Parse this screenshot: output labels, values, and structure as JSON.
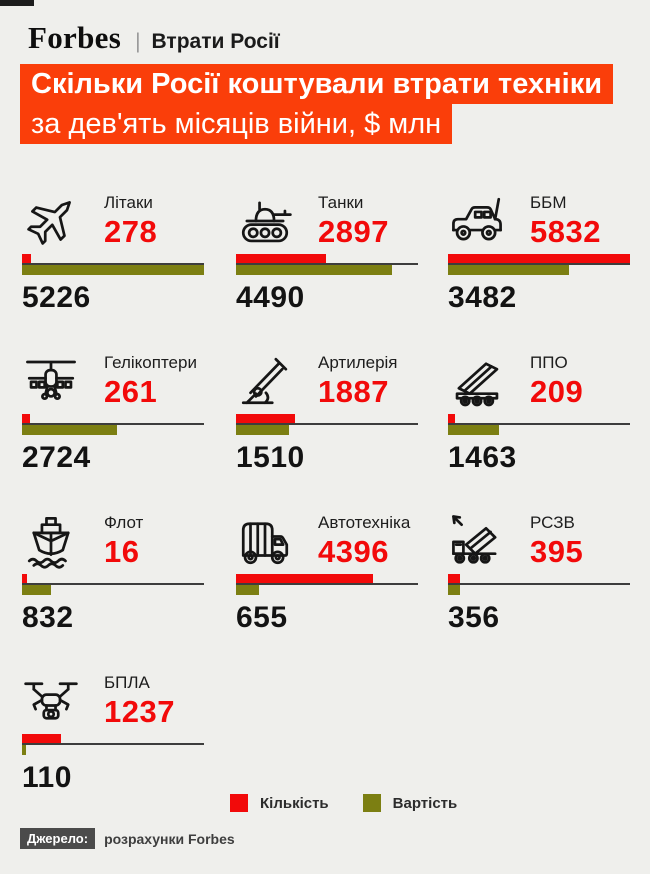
{
  "meta": {
    "background": "#EFEFEC",
    "accent": "#FA3E0A",
    "quantity_color": "#F20A0A",
    "cost_color": "#7C7F12"
  },
  "header": {
    "brand": "Forbes",
    "separator": "|",
    "section": "Втрати Росії"
  },
  "banner": {
    "title": "Скільки Росії коштували втрати техніки",
    "subtitle": "за дев'ять місяців війни, $ млн"
  },
  "chart_data": {
    "type": "bar",
    "orientation": "horizontal",
    "unit": "$ млн",
    "series": [
      {
        "name": "Кількість",
        "color": "#F20A0A",
        "scale_max": 5832
      },
      {
        "name": "Вартість",
        "color": "#7C7F12",
        "scale_max": 5226
      }
    ],
    "items": [
      {
        "label": "Літаки",
        "icon": "fighter-jet-icon",
        "quantity": 278,
        "cost": 5226
      },
      {
        "label": "Танки",
        "icon": "tank-icon",
        "quantity": 2897,
        "cost": 4490
      },
      {
        "label": "ББМ",
        "icon": "armored-vehicle-icon",
        "quantity": 5832,
        "cost": 3482
      },
      {
        "label": "Гелікоптери",
        "icon": "helicopter-icon",
        "quantity": 261,
        "cost": 2724
      },
      {
        "label": "Артилерія",
        "icon": "artillery-icon",
        "quantity": 1887,
        "cost": 1510
      },
      {
        "label": "ППО",
        "icon": "air-defense-icon",
        "quantity": 209,
        "cost": 1463
      },
      {
        "label": "Флот",
        "icon": "ship-icon",
        "quantity": 16,
        "cost": 832
      },
      {
        "label": "Автотехніка",
        "icon": "truck-icon",
        "quantity": 4396,
        "cost": 655
      },
      {
        "label": "РСЗВ",
        "icon": "mlrs-icon",
        "quantity": 395,
        "cost": 356
      },
      {
        "label": "БПЛА",
        "icon": "drone-icon",
        "quantity": 1237,
        "cost": 110
      }
    ]
  },
  "legend": {
    "items": [
      {
        "label": "Кількість",
        "color": "#F20A0A"
      },
      {
        "label": "Вартість",
        "color": "#7C7F12"
      }
    ]
  },
  "source": {
    "badge": "Джерело:",
    "text": "розрахунки Forbes"
  }
}
